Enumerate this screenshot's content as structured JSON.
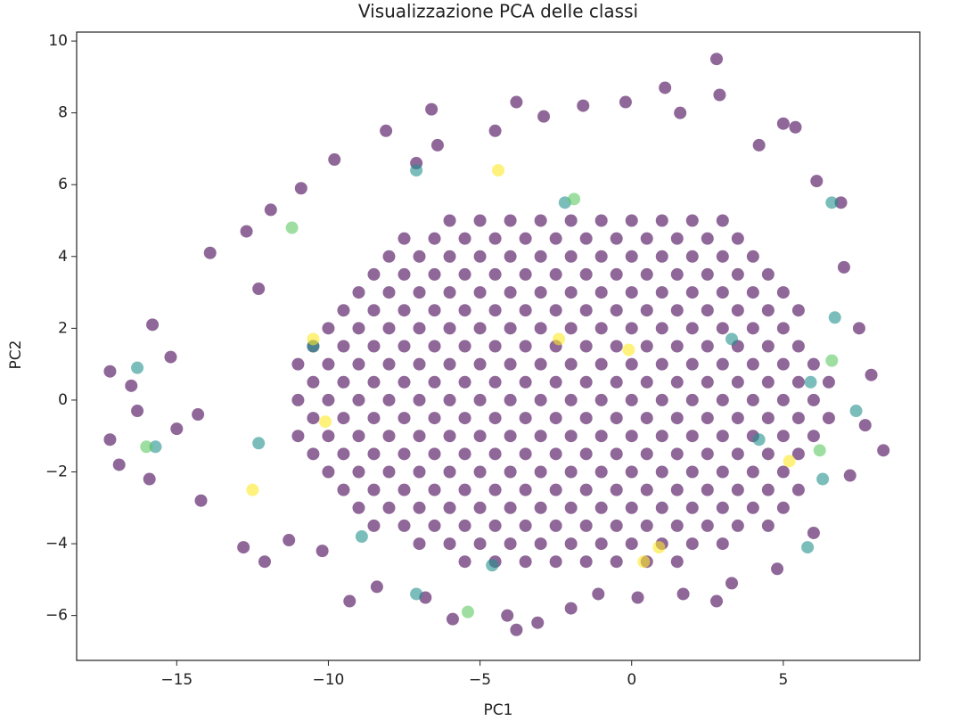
{
  "chart_data": {
    "type": "scatter",
    "title": "Visualizzazione PCA delle classi",
    "x_label": "PC1",
    "y_label": "PC2",
    "xlim": [
      -18.3,
      9.5
    ],
    "ylim": [
      -7.25,
      10.25
    ],
    "xticks": [
      {
        "value": -15,
        "label": "−15"
      },
      {
        "value": -10,
        "label": "−10"
      },
      {
        "value": -5,
        "label": "−5"
      },
      0,
      5
    ],
    "yticks": [
      {
        "value": -6,
        "label": "−6"
      },
      {
        "value": -4,
        "label": "−4"
      },
      {
        "value": -2,
        "label": "−2"
      },
      0,
      2,
      4,
      6,
      8,
      10
    ],
    "series": [
      {
        "color": "#440154",
        "x": [
          -6,
          -5,
          -4,
          -3,
          -2,
          -1,
          0,
          1,
          2,
          3,
          -7.5,
          -6.5,
          -5.5,
          -4.5,
          -3.5,
          -2.5,
          -1.5,
          -0.5,
          0.5,
          1.5,
          2.5,
          3.5,
          -8,
          -7,
          -6,
          -5,
          -4,
          -3,
          -2,
          -1,
          0,
          1,
          2,
          3,
          4,
          -8.5,
          -7.5,
          -6.5,
          -5.5,
          -4.5,
          -3.5,
          -2.5,
          -1.5,
          -0.5,
          0.5,
          1.5,
          2.5,
          3.5,
          4.5,
          -9,
          -8,
          -7,
          -6,
          -5,
          -4,
          -3,
          -2,
          -1,
          0,
          1,
          2,
          3,
          4,
          5,
          -9.5,
          -8.5,
          -7.5,
          -6.5,
          -5.5,
          -4.5,
          -3.5,
          -2.5,
          -1.5,
          -0.5,
          0.5,
          1.5,
          2.5,
          3.5,
          4.5,
          5.5,
          -10,
          -9,
          -8,
          -7,
          -6,
          -5,
          -4,
          -3,
          -2,
          -1,
          0,
          1,
          2,
          3,
          4,
          5,
          -10.5,
          -9.5,
          -8.5,
          -7.5,
          -6.5,
          -5.5,
          -4.5,
          -3.5,
          -2.5,
          -1.5,
          -0.5,
          0.5,
          1.5,
          2.5,
          3.5,
          4.5,
          5.5,
          -11,
          -10,
          -9,
          -8,
          -7,
          -6,
          -5,
          -4,
          -3,
          -2,
          -1,
          0,
          1,
          2,
          3,
          4,
          5,
          6,
          -10.5,
          -9.5,
          -8.5,
          -7.5,
          -6.5,
          -5.5,
          -4.5,
          -3.5,
          -2.5,
          -1.5,
          -0.5,
          0.5,
          1.5,
          2.5,
          3.5,
          4.5,
          5.5,
          6.5,
          -11,
          -10,
          -9,
          -8,
          -7,
          -6,
          -5,
          -4,
          -3,
          -2,
          -1,
          0,
          1,
          2,
          3,
          4,
          5,
          6,
          -10.5,
          -9.5,
          -8.5,
          -7.5,
          -6.5,
          -5.5,
          -4.5,
          -3.5,
          -2.5,
          -1.5,
          -0.5,
          0.5,
          1.5,
          2.5,
          3.5,
          4.5,
          5.5,
          6.5,
          -11,
          -10,
          -9,
          -8,
          -7,
          -6,
          -5,
          -4,
          -3,
          -2,
          -1,
          0,
          1,
          2,
          3,
          4,
          5,
          6,
          -10.5,
          -9.5,
          -8.5,
          -7.5,
          -6.5,
          -5.5,
          -4.5,
          -3.5,
          -2.5,
          -1.5,
          -0.5,
          0.5,
          1.5,
          2.5,
          3.5,
          4.5,
          5.5,
          -10,
          -9,
          -8,
          -7,
          -6,
          -5,
          -4,
          -3,
          -2,
          -1,
          0,
          1,
          2,
          3,
          4,
          5,
          -9.5,
          -8.5,
          -7.5,
          -6.5,
          -5.5,
          -4.5,
          -3.5,
          -2.5,
          -1.5,
          -0.5,
          0.5,
          1.5,
          2.5,
          3.5,
          4.5,
          5.5,
          -9,
          -8,
          -7,
          -6,
          -5,
          -4,
          -3,
          -2,
          -1,
          0,
          1,
          2,
          3,
          4,
          5,
          -8.5,
          -7.5,
          -6.5,
          -5.5,
          -4.5,
          -3.5,
          -2.5,
          -1.5,
          -0.5,
          0.5,
          1.5,
          2.5,
          3.5,
          4.5,
          -7,
          -6,
          -5,
          -4,
          -3,
          -2,
          -1,
          0,
          1,
          2,
          3,
          -5.5,
          -4.5,
          -3.5,
          -2.5,
          -1.5,
          -0.5,
          0.5,
          1.5,
          -17.2,
          -17.2,
          -16.9,
          -16.3,
          -15.9,
          -15.8,
          -15.2,
          -14.3,
          -13.9,
          -14.2,
          -12.7,
          -12.3,
          -12.8,
          -12.1,
          -11.9,
          -11.3,
          -10.9,
          -10.2,
          -9.8,
          -9.3,
          -8.1,
          -8.4,
          -7.1,
          -6.4,
          -6.6,
          -5.9,
          -4.5,
          -3.8,
          -4.1,
          -3.8,
          -2.9,
          -1.6,
          -2.0,
          -0.2,
          0.2,
          1.1,
          1.6,
          1.7,
          2.8,
          2.9,
          3.3,
          4.2,
          5.0,
          5.4,
          4.8,
          6.1,
          6.9,
          7.2,
          7.5,
          7.9,
          8.3,
          7.0,
          7.7,
          6.0,
          2.8,
          -1.1,
          -6.8,
          -3.1,
          -16.5,
          -15.0
        ],
        "values": [
          5,
          5,
          5,
          5,
          5,
          5,
          5,
          5,
          5,
          5,
          4.5,
          4.5,
          4.5,
          4.5,
          4.5,
          4.5,
          4.5,
          4.5,
          4.5,
          4.5,
          4.5,
          4.5,
          4,
          4,
          4,
          4,
          4,
          4,
          4,
          4,
          4,
          4,
          4,
          4,
          4,
          3.5,
          3.5,
          3.5,
          3.5,
          3.5,
          3.5,
          3.5,
          3.5,
          3.5,
          3.5,
          3.5,
          3.5,
          3.5,
          3.5,
          3,
          3,
          3,
          3,
          3,
          3,
          3,
          3,
          3,
          3,
          3,
          3,
          3,
          3,
          3,
          2.5,
          2.5,
          2.5,
          2.5,
          2.5,
          2.5,
          2.5,
          2.5,
          2.5,
          2.5,
          2.5,
          2.5,
          2.5,
          2.5,
          2.5,
          2.5,
          2,
          2,
          2,
          2,
          2,
          2,
          2,
          2,
          2,
          2,
          2,
          2,
          2,
          2,
          2,
          2,
          1.5,
          1.5,
          1.5,
          1.5,
          1.5,
          1.5,
          1.5,
          1.5,
          1.5,
          1.5,
          1.5,
          1.5,
          1.5,
          1.5,
          1.5,
          1.5,
          1.5,
          1,
          1,
          1,
          1,
          1,
          1,
          1,
          1,
          1,
          1,
          1,
          1,
          1,
          1,
          1,
          1,
          1,
          1,
          0.5,
          0.5,
          0.5,
          0.5,
          0.5,
          0.5,
          0.5,
          0.5,
          0.5,
          0.5,
          0.5,
          0.5,
          0.5,
          0.5,
          0.5,
          0.5,
          0.5,
          0.5,
          0,
          0,
          0,
          0,
          0,
          0,
          0,
          0,
          0,
          0,
          0,
          0,
          0,
          0,
          0,
          0,
          0,
          0,
          -0.5,
          -0.5,
          -0.5,
          -0.5,
          -0.5,
          -0.5,
          -0.5,
          -0.5,
          -0.5,
          -0.5,
          -0.5,
          -0.5,
          -0.5,
          -0.5,
          -0.5,
          -0.5,
          -0.5,
          -0.5,
          -1,
          -1,
          -1,
          -1,
          -1,
          -1,
          -1,
          -1,
          -1,
          -1,
          -1,
          -1,
          -1,
          -1,
          -1,
          -1,
          -1,
          -1,
          -1.5,
          -1.5,
          -1.5,
          -1.5,
          -1.5,
          -1.5,
          -1.5,
          -1.5,
          -1.5,
          -1.5,
          -1.5,
          -1.5,
          -1.5,
          -1.5,
          -1.5,
          -1.5,
          -1.5,
          -2,
          -2,
          -2,
          -2,
          -2,
          -2,
          -2,
          -2,
          -2,
          -2,
          -2,
          -2,
          -2,
          -2,
          -2,
          -2,
          -2.5,
          -2.5,
          -2.5,
          -2.5,
          -2.5,
          -2.5,
          -2.5,
          -2.5,
          -2.5,
          -2.5,
          -2.5,
          -2.5,
          -2.5,
          -2.5,
          -2.5,
          -2.5,
          -3,
          -3,
          -3,
          -3,
          -3,
          -3,
          -3,
          -3,
          -3,
          -3,
          -3,
          -3,
          -3,
          -3,
          -3,
          -3.5,
          -3.5,
          -3.5,
          -3.5,
          -3.5,
          -3.5,
          -3.5,
          -3.5,
          -3.5,
          -3.5,
          -3.5,
          -3.5,
          -3.5,
          -3.5,
          -4,
          -4,
          -4,
          -4,
          -4,
          -4,
          -4,
          -4,
          -4,
          -4,
          -4,
          -4.5,
          -4.5,
          -4.5,
          -4.5,
          -4.5,
          -4.5,
          -4.5,
          -4.5,
          0.8,
          -1.1,
          -1.8,
          -0.3,
          -2.2,
          2.1,
          1.2,
          -0.4,
          4.1,
          -2.8,
          4.7,
          3.1,
          -4.1,
          -4.5,
          5.3,
          -3.9,
          5.9,
          -4.2,
          6.7,
          -5.6,
          7.5,
          -5.2,
          6.6,
          7.1,
          8.1,
          -6.1,
          7.5,
          8.3,
          -6.0,
          -6.4,
          7.9,
          8.2,
          -5.8,
          8.3,
          -5.5,
          8.7,
          8.0,
          -5.4,
          9.5,
          8.5,
          -5.1,
          7.1,
          7.7,
          7.6,
          -4.7,
          6.1,
          5.5,
          -2.1,
          2.0,
          0.7,
          -1.4,
          3.7,
          -0.7,
          -3.7,
          -5.6,
          -5.4,
          -5.5,
          -6.2,
          0.4,
          -0.8
        ]
      },
      {
        "color": "#21918c",
        "x": [
          -16.3,
          -15.7,
          -7.1,
          -7.1,
          5.8,
          6.3,
          6.6,
          7.4,
          -8.9,
          -2.2,
          4.2,
          -12.3,
          5.9,
          3.3,
          -4.6,
          6.7,
          -10.5
        ],
        "values": [
          0.9,
          -1.3,
          6.4,
          -5.4,
          -4.1,
          -2.2,
          5.5,
          -0.3,
          -3.8,
          5.5,
          -1.1,
          -1.2,
          0.5,
          1.7,
          -4.6,
          2.3,
          1.5
        ]
      },
      {
        "color": "#5ec962",
        "x": [
          -16.0,
          -5.4,
          6.2,
          -11.2,
          6.6,
          -1.9
        ],
        "values": [
          -1.3,
          -5.9,
          -1.4,
          4.8,
          1.1,
          5.6
        ]
      },
      {
        "color": "#fde725",
        "x": [
          -12.5,
          -10.1,
          -10.5,
          -2.4,
          0.9,
          5.2,
          -4.4,
          -0.1,
          0.4
        ],
        "values": [
          -2.5,
          -0.6,
          1.7,
          1.7,
          -4.1,
          -1.7,
          6.4,
          1.4,
          -4.5
        ]
      }
    ]
  }
}
